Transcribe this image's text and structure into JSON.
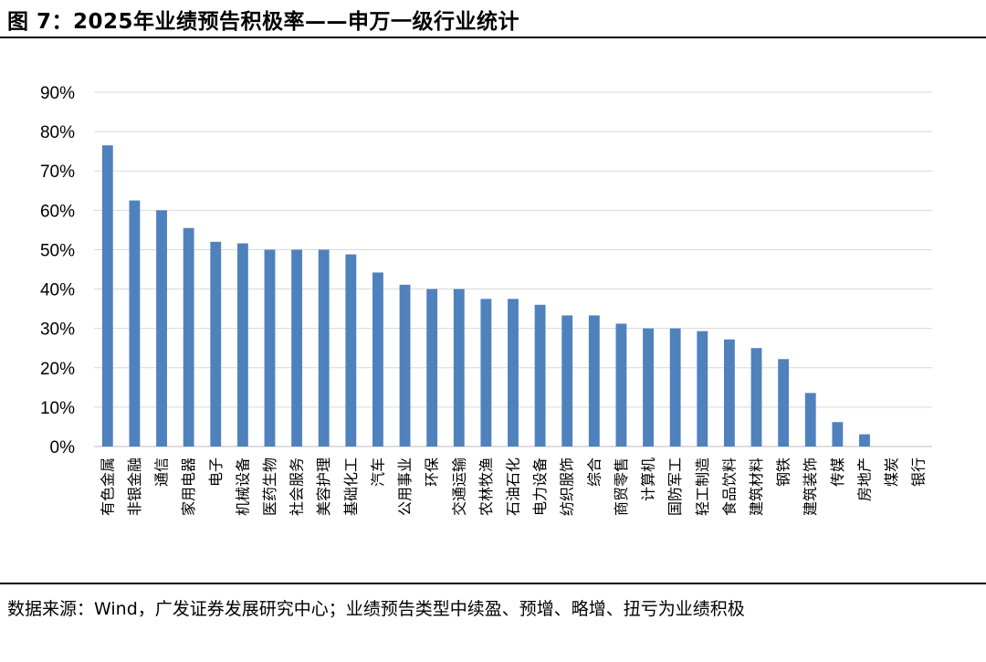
{
  "figure": {
    "title": "图 7：2025年业绩预告积极率——申万一级行业统计",
    "source": "数据来源：Wind，广发证券发展研究中心；业绩预告类型中续盈、预增、略增、扭亏为业绩积极"
  },
  "chart_data": {
    "type": "bar",
    "title": "",
    "xlabel": "",
    "ylabel": "",
    "ylim": [
      0,
      90
    ],
    "yticks": [
      "0%",
      "10%",
      "20%",
      "30%",
      "40%",
      "50%",
      "60%",
      "70%",
      "80%",
      "90%"
    ],
    "grid": true,
    "legend": "none",
    "bar_color": "#4F81BD",
    "categories": [
      "有色金属",
      "非银金融",
      "通信",
      "家用电器",
      "电子",
      "机械设备",
      "医药生物",
      "社会服务",
      "美容护理",
      "基础化工",
      "汽车",
      "公用事业",
      "环保",
      "交通运输",
      "农林牧渔",
      "石油石化",
      "电力设备",
      "纺织服饰",
      "综合",
      "商贸零售",
      "计算机",
      "国防军工",
      "轻工制造",
      "食品饮料",
      "建筑材料",
      "钢铁",
      "建筑装饰",
      "传媒",
      "房地产",
      "煤炭",
      "银行"
    ],
    "values": [
      76.5,
      62.5,
      60.0,
      55.5,
      52.0,
      51.6,
      50.0,
      50.0,
      50.0,
      48.8,
      44.2,
      41.1,
      40.0,
      40.0,
      37.5,
      37.5,
      36.0,
      33.3,
      33.3,
      31.2,
      30.0,
      30.0,
      29.3,
      27.2,
      25.0,
      22.2,
      13.6,
      6.2,
      3.1,
      0,
      0
    ]
  }
}
